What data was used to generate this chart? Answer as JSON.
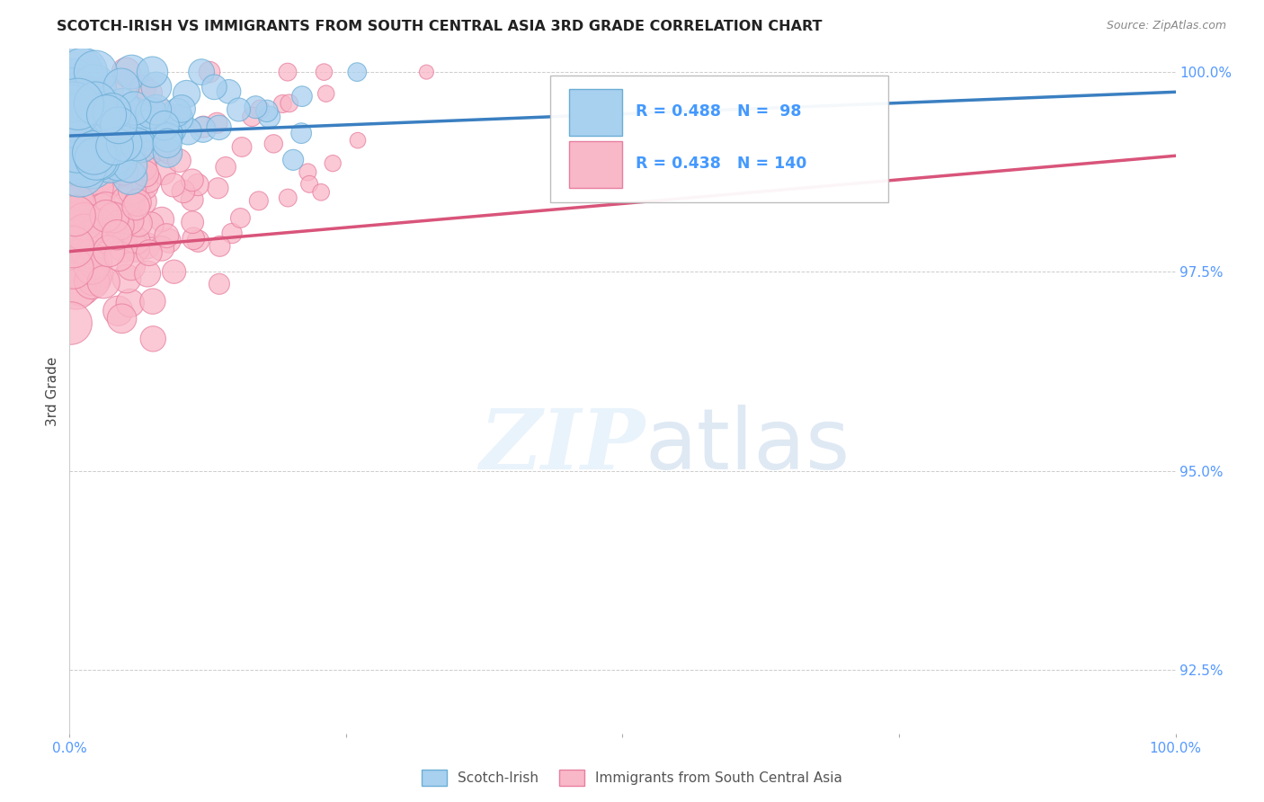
{
  "title": "SCOTCH-IRISH VS IMMIGRANTS FROM SOUTH CENTRAL ASIA 3RD GRADE CORRELATION CHART",
  "source": "Source: ZipAtlas.com",
  "ylabel": "3rd Grade",
  "xlim": [
    0.0,
    1.0
  ],
  "ylim": [
    0.917,
    1.003
  ],
  "yticks": [
    0.925,
    0.95,
    0.975,
    1.0
  ],
  "ytick_labels": [
    "92.5%",
    "95.0%",
    "97.5%",
    "100.0%"
  ],
  "blue_R": 0.488,
  "blue_N": 98,
  "pink_R": 0.438,
  "pink_N": 140,
  "blue_fill": "#a8d0ef",
  "blue_edge": "#6baed6",
  "pink_fill": "#f9b8c8",
  "pink_edge": "#e87fa0",
  "blue_line": "#3a7fc1",
  "pink_line": "#d9547a",
  "blue_label": "Scotch-Irish",
  "pink_label": "Immigrants from South Central Asia",
  "watermark_zip": "ZIP",
  "watermark_atlas": "atlas",
  "background_color": "#ffffff",
  "grid_color": "#cccccc",
  "title_color": "#222222",
  "axis_color": "#5599ff",
  "legend_text_color": "#4499ff",
  "source_color": "#888888"
}
